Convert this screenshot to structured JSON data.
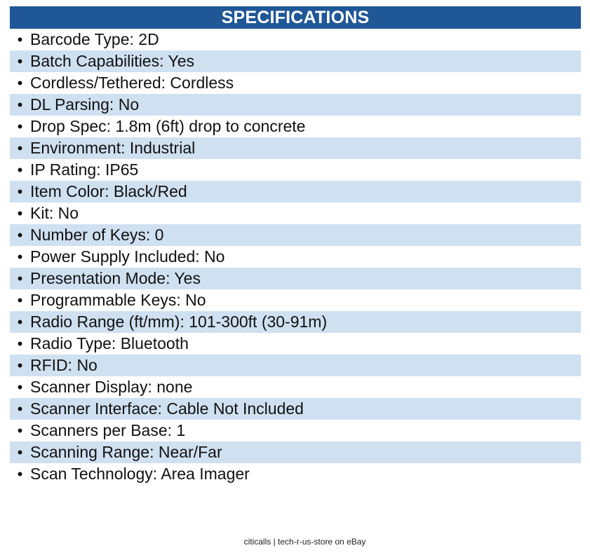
{
  "header": {
    "title": "SPECIFICATIONS"
  },
  "specs": [
    "Barcode Type: 2D",
    "Batch Capabilities: Yes",
    "Cordless/Tethered: Cordless",
    "DL Parsing: No",
    "Drop Spec: 1.8m (6ft) drop to concrete",
    "Environment: Industrial",
    "IP Rating: IP65",
    "Item Color: Black/Red",
    "Kit: No",
    "Number of Keys: 0",
    "Power Supply Included: No",
    "Presentation Mode: Yes",
    "Programmable Keys: No",
    "Radio Range (ft/mm): 101-300ft (30-91m)",
    "Radio Type: Bluetooth",
    "RFID: No",
    "Scanner Display: none",
    "Scanner Interface: Cable Not Included",
    "Scanners per Base: 1",
    "Scanning Range: Near/Far",
    "Scan Technology: Area Imager"
  ],
  "bullet": "•",
  "footer": {
    "text": "citicalls | tech-r-us-store on eBay"
  },
  "colors": {
    "header_bg": "#1f5797",
    "stripe_bg": "#cfe0f1"
  }
}
